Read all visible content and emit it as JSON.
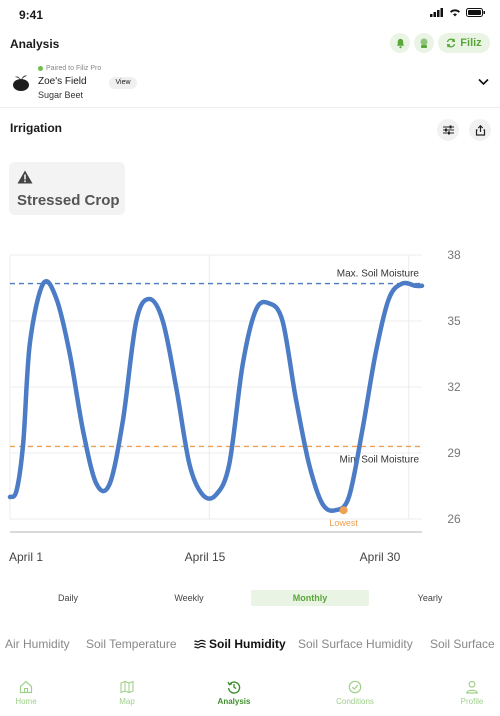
{
  "status_bar": {
    "time": "9:41"
  },
  "header": {
    "title": "Analysis",
    "brand_button": "Filiz"
  },
  "field": {
    "paired_text": "Paired to Filiz Pro",
    "name": "Zoe's Field",
    "crop": "Sugar Beet",
    "view_label": "View"
  },
  "section": {
    "title": "Irrigation"
  },
  "status_card": {
    "label": "Stressed Crop"
  },
  "chart_data": {
    "type": "line",
    "x_tick_labels": [
      "April 1",
      "April 15",
      "April 30"
    ],
    "y_ticks": [
      26,
      29,
      32,
      35,
      38
    ],
    "ylim": [
      26,
      38
    ],
    "grid": true,
    "series": [
      {
        "x": [
          0,
          0.5,
          1.0,
          1.5,
          2.5,
          3.5,
          4.5,
          5.5,
          6.5,
          7.5,
          8.5,
          9.5,
          10.5,
          11.5,
          12.5,
          13.5,
          14.5,
          15.5,
          16.5,
          17.5,
          18.5,
          19.5,
          20.5,
          21.5,
          22.5,
          23.5,
          24.5,
          25.5,
          26.5,
          27.5,
          28.5,
          29.5,
          30.5,
          31.0
        ],
        "values": [
          27.0,
          27.3,
          29.5,
          34.0,
          36.7,
          36.0,
          33.5,
          30.0,
          27.6,
          27.6,
          30.5,
          35.0,
          36.0,
          35.0,
          32.0,
          28.5,
          27.1,
          27.1,
          28.5,
          33.0,
          35.5,
          35.8,
          35.0,
          31.5,
          28.5,
          26.7,
          26.4,
          27.0,
          30.0,
          33.5,
          36.0,
          36.7,
          36.6,
          36.6
        ]
      }
    ],
    "reference_lines": [
      {
        "label": "Max. Soil Moisture",
        "value": 36.7,
        "color": "#4a7cc6"
      },
      {
        "label": "Min. Soil Moisture",
        "value": 29.3,
        "color": "#f0a054"
      }
    ],
    "annotation": {
      "label": "Lowest",
      "x": 25.1,
      "value": 26.4,
      "color": "#f0a054"
    },
    "line_color": "#4c7cc5"
  },
  "period_tabs": [
    "Daily",
    "Weekly",
    "Monthly",
    "Yearly"
  ],
  "period_active": "Monthly",
  "metric_tabs": [
    "Air Humidity",
    "Soil Temperature",
    "Soil Humidity",
    "Soil Surface Humidity",
    "Soil Surface"
  ],
  "metric_active": "Soil Humidity",
  "bottom_nav": [
    "Home",
    "Map",
    "Analysis",
    "Conditions",
    "Profile"
  ],
  "nav_active": "Analysis",
  "colors": {
    "accent_green": "#5aa63a",
    "chart_line": "#4c7cc5",
    "max_line": "#4a7cc6",
    "min_line": "#f0a054"
  }
}
